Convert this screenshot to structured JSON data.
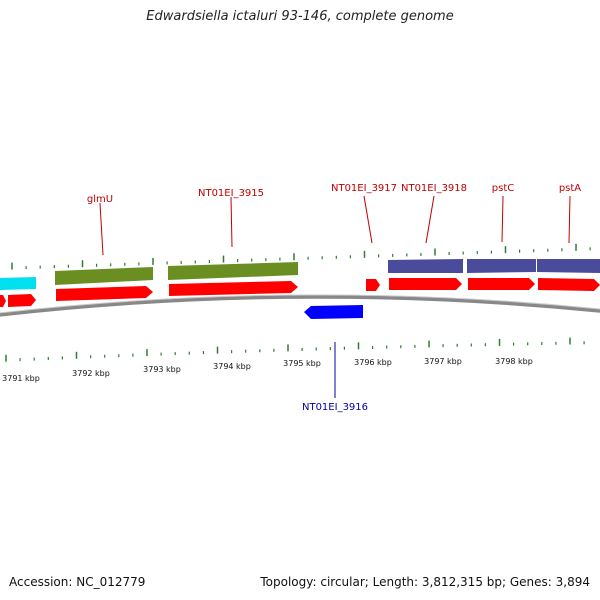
{
  "map": {
    "title": "Edwardsiella ictaluri 93-146, complete genome",
    "accession": "Accession: NC_012779",
    "summary": "Topology: circular; Length: 3,812,315 bp; Genes: 3,894"
  },
  "colors": {
    "cds": "#ff0000",
    "gene_green": "#6b8e23",
    "gene_purple": "#4b4b9b",
    "gene_cyan": "#00e5ee",
    "minus_strand": "#0000ff",
    "tick": "#2e7d32",
    "backbone": "#808080",
    "label_red": "#c00000",
    "label_blue": "#0000aa"
  },
  "scale": {
    "unit": "kbp",
    "labels": [
      "3791 kbp",
      "3792 kbp",
      "3793 kbp",
      "3794 kbp",
      "3795 kbp",
      "3796 kbp",
      "3797 kbp",
      "3798 kbp"
    ]
  },
  "gene_labels": [
    {
      "text": "glmU",
      "strand": "forward"
    },
    {
      "text": "NT01EI_3915",
      "strand": "forward"
    },
    {
      "text": "NT01EI_3917",
      "strand": "forward"
    },
    {
      "text": "NT01EI_3918",
      "strand": "forward"
    },
    {
      "text": "pstC",
      "strand": "forward"
    },
    {
      "text": "pstA",
      "strand": "forward"
    },
    {
      "text": "NT01EI_3916",
      "strand": "reverse"
    }
  ]
}
